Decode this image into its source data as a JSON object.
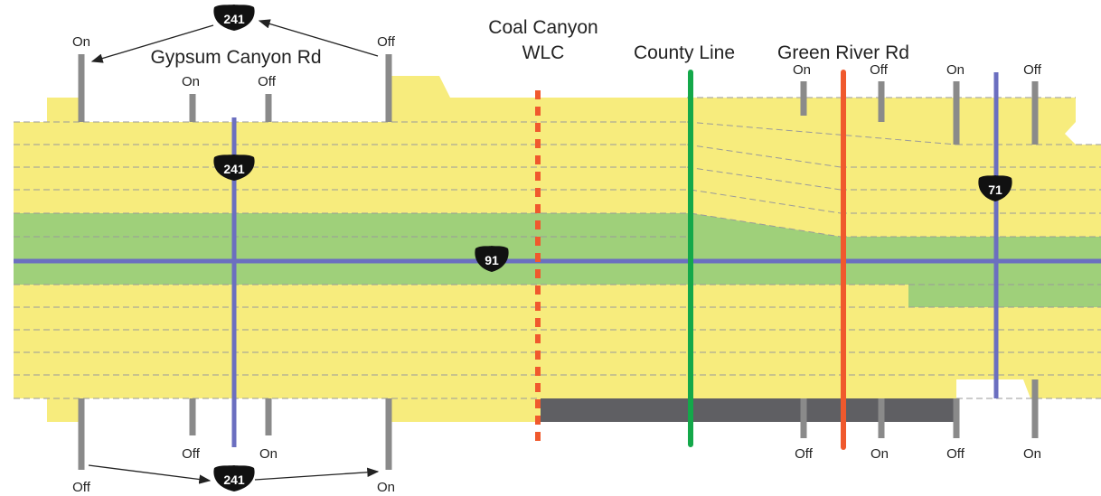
{
  "colors": {
    "lane_yellow": "#f7ec7d",
    "lane_green": "#9fd07a",
    "lane_dash": "#9a9a9a",
    "road_blue": "#6b6fc0",
    "ramp_gray": "#8a8a8a",
    "dark_band": "#5f5f63",
    "coal_canyon_orange": "#f0592d",
    "county_line_green": "#14a84a",
    "green_river_red": "#f0592d",
    "shield_black": "#111111"
  },
  "labels": {
    "gypsum": "Gypsum Canyon Rd",
    "coal_canyon_line1": "Coal Canyon",
    "coal_canyon_line2": "WLC",
    "county_line": "County Line",
    "green_river": "Green River Rd"
  },
  "shields": {
    "top_241": "241",
    "mid_241": "241",
    "bottom_241": "241",
    "route_91": "91",
    "route_71": "71"
  },
  "ramps": {
    "top": {
      "t1": "On",
      "t2": "Off",
      "t3": "On",
      "t4": "Off",
      "t5": "On",
      "t6": "Off",
      "t7": "On",
      "t8": "Off"
    },
    "bottom": {
      "b1": "Off",
      "b2": "Off",
      "b3": "On",
      "b4": "On",
      "b5": "Off",
      "b6": "On",
      "b7": "Off",
      "b8": "On"
    }
  }
}
